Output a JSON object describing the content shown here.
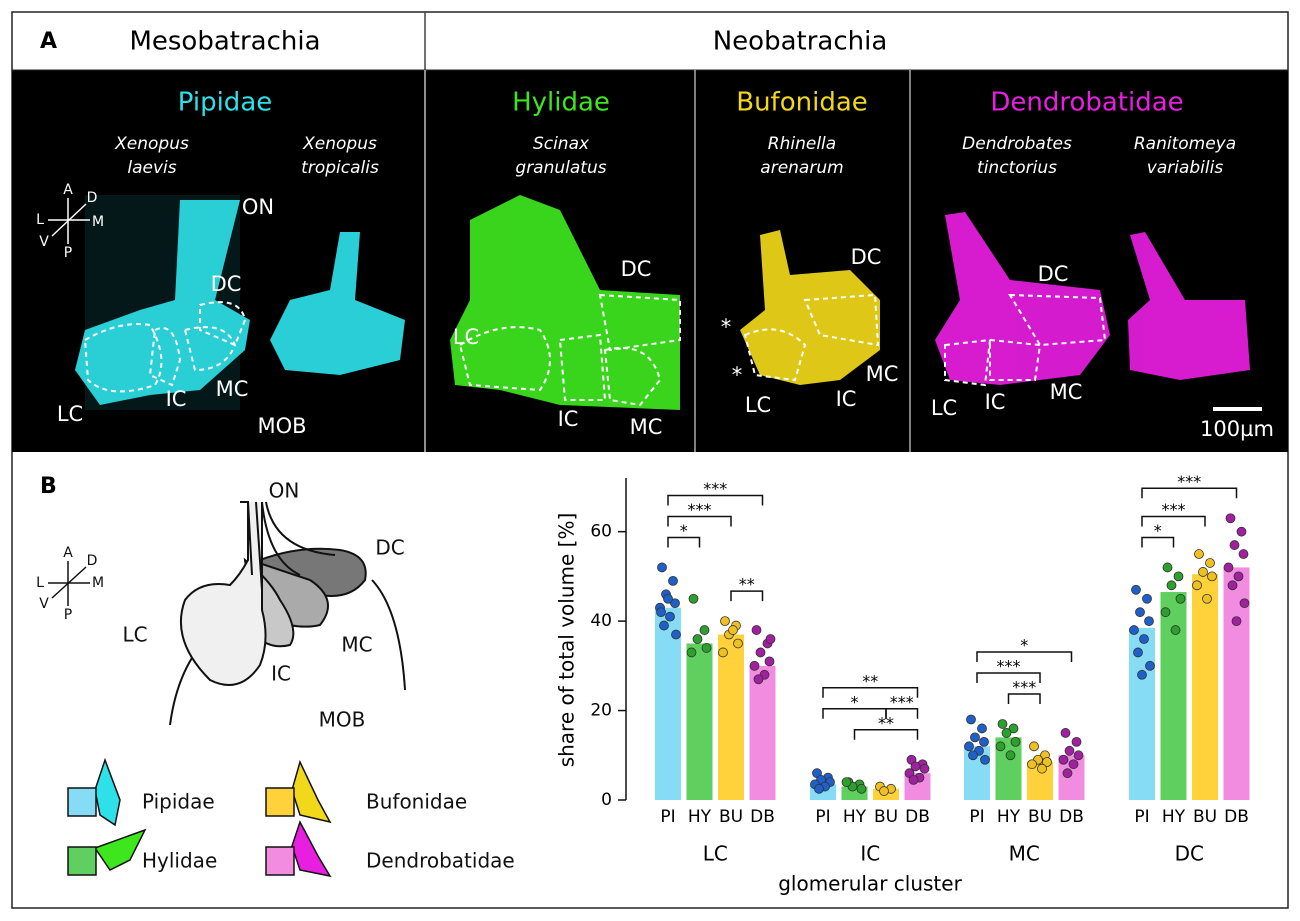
{
  "panel_a": {
    "label": "A",
    "clades": [
      "Mesobatrachia",
      "Neobatrachia"
    ],
    "families": [
      {
        "name": "Pipidae",
        "color": "#2ee0e8",
        "species": [
          {
            "genus": "Xenopus",
            "epithet": "laevis"
          },
          {
            "genus": "Xenopus",
            "epithet": "tropicalis"
          }
        ]
      },
      {
        "name": "Hylidae",
        "color": "#3ee61e",
        "species": [
          {
            "genus": "Scinax",
            "epithet": "granulatus"
          }
        ]
      },
      {
        "name": "Bufonidae",
        "color": "#f2d81a",
        "species": [
          {
            "genus": "Rhinella",
            "epithet": "arenarum"
          }
        ]
      },
      {
        "name": "Dendrobatidae",
        "color": "#e81ee0",
        "species": [
          {
            "genus": "Dendrobates",
            "epithet": "tinctorius"
          },
          {
            "genus": "Ranitomeya",
            "epithet": "variabilis"
          }
        ]
      }
    ],
    "orientation": [
      "A",
      "D",
      "L",
      "M",
      "V",
      "P"
    ],
    "labels": [
      "ON",
      "DC",
      "LC",
      "IC",
      "MC",
      "MOB",
      "DC",
      "LC",
      "IC",
      "MC",
      "DC",
      "LC",
      "MC",
      "IC",
      "*",
      "*",
      "DC",
      "LC",
      "IC",
      "MC"
    ],
    "scale_bar": "100µm"
  },
  "panel_b": {
    "label": "B",
    "orientation": [
      "A",
      "D",
      "L",
      "M",
      "V",
      "P"
    ],
    "labels": [
      "ON",
      "DC",
      "LC",
      "MC",
      "IC",
      "MOB"
    ]
  },
  "chart_data": {
    "type": "bar",
    "ylabel": "share of total volume [%]",
    "xlabel": "glomerular cluster",
    "categories": [
      "LC",
      "IC",
      "MC",
      "DC"
    ],
    "ylim": [
      0,
      72
    ],
    "yticks": [
      0,
      20,
      40,
      60
    ],
    "series": [
      {
        "name": "Pipidae",
        "abbr": "PI",
        "color": "#86dcf4",
        "point_color": "#1f5fc9",
        "values": [
          43,
          3.5,
          12,
          38.5
        ],
        "points": [
          [
            52,
            49,
            46,
            44,
            43,
            41,
            39,
            37,
            45,
            42
          ],
          [
            6,
            5,
            4.5,
            4,
            3.5,
            3,
            2.5
          ],
          [
            18,
            16,
            14,
            13,
            12,
            11,
            10,
            9
          ],
          [
            47,
            45,
            42,
            40,
            38,
            36,
            33,
            30,
            28
          ]
        ]
      },
      {
        "name": "Hylidae",
        "abbr": "HY",
        "color": "#5fcf5f",
        "point_color": "#2ca02c",
        "values": [
          35,
          3,
          14,
          46.5
        ],
        "points": [
          [
            45,
            38,
            36,
            34,
            33
          ],
          [
            4,
            3.5,
            3,
            2.5,
            4
          ],
          [
            17,
            16,
            15,
            13,
            12,
            10
          ],
          [
            52,
            50,
            48,
            45,
            42,
            38
          ]
        ]
      },
      {
        "name": "Bufonidae",
        "abbr": "BU",
        "color": "#ffd23c",
        "point_color": "#f0c020",
        "values": [
          37,
          2.5,
          8.5,
          50.5
        ],
        "points": [
          [
            40,
            39,
            37,
            35,
            33,
            38
          ],
          [
            3,
            2.5,
            2
          ],
          [
            12,
            10,
            9,
            8.5,
            8,
            7
          ],
          [
            55,
            53,
            51,
            50,
            48,
            45
          ]
        ]
      },
      {
        "name": "Dendrobatidae",
        "abbr": "DB",
        "color": "#f28ce0",
        "point_color": "#a020a0",
        "values": [
          30,
          6,
          10,
          52
        ],
        "points": [
          [
            38,
            35,
            33,
            31,
            30,
            28,
            27,
            36
          ],
          [
            9,
            8,
            7.5,
            7,
            6,
            5,
            4.5
          ],
          [
            15,
            13,
            11,
            10,
            9,
            8,
            6
          ],
          [
            63,
            60,
            57,
            55,
            52,
            50,
            48,
            44,
            40
          ]
        ]
      }
    ],
    "brackets": [
      [
        {
          "from": 0,
          "to": 1,
          "label": "*"
        },
        {
          "from": 0,
          "to": 2,
          "label": "***"
        },
        {
          "from": 2,
          "to": 3,
          "label": "**"
        },
        {
          "from": 0,
          "to": 3,
          "label": "***"
        }
      ],
      [
        {
          "from": 1,
          "to": 3,
          "label": "**"
        },
        {
          "from": 0,
          "to": 2,
          "label": "*"
        },
        {
          "from": 2,
          "to": 3,
          "label": "***"
        },
        {
          "from": 0,
          "to": 3,
          "label": "**"
        }
      ],
      [
        {
          "from": 1,
          "to": 2,
          "label": "***"
        },
        {
          "from": 0,
          "to": 2,
          "label": "***"
        },
        {
          "from": 0,
          "to": 3,
          "label": "*"
        }
      ],
      [
        {
          "from": 0,
          "to": 1,
          "label": "*"
        },
        {
          "from": 0,
          "to": 2,
          "label": "***"
        },
        {
          "from": 0,
          "to": 3,
          "label": "***"
        }
      ]
    ]
  }
}
